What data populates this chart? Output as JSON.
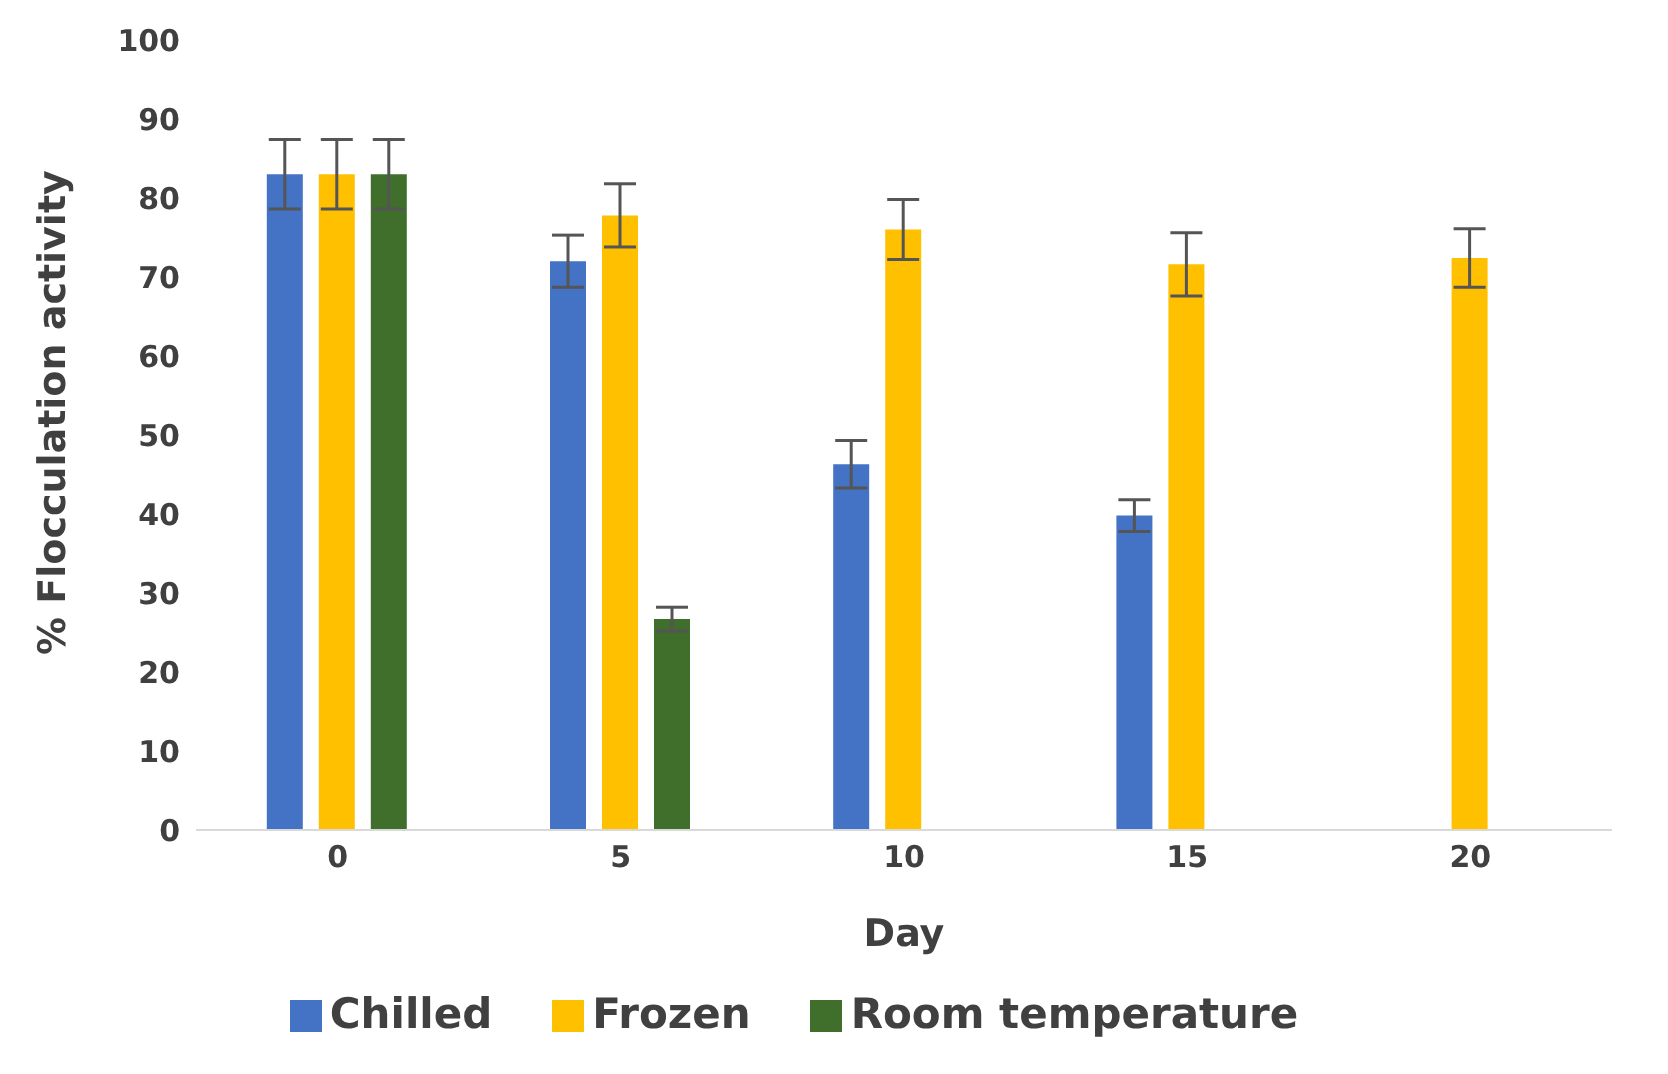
{
  "chart_data": {
    "type": "bar",
    "xlabel": "Day",
    "ylabel": "% Flocculation activity",
    "categories": [
      "0",
      "5",
      "10",
      "15",
      "20"
    ],
    "series": [
      {
        "name": "Chilled",
        "color": "#4472c4",
        "values": [
          83,
          72,
          46.3,
          39.8,
          null
        ],
        "errors": [
          4.4,
          3.3,
          3,
          2,
          null
        ]
      },
      {
        "name": "Frozen",
        "color": "#ffc000",
        "values": [
          83,
          77.8,
          76,
          71.6,
          72.4
        ],
        "errors": [
          4.4,
          4,
          3.8,
          4,
          3.7
        ]
      },
      {
        "name": "Room temperature",
        "color": "#3f6f2a",
        "values": [
          83,
          26.7,
          null,
          null,
          null
        ],
        "errors": [
          4.4,
          1.5,
          null,
          null,
          null
        ]
      }
    ],
    "ylim": [
      0,
      100
    ],
    "yticks": [
      0,
      10,
      20,
      30,
      40,
      50,
      60,
      70,
      80,
      90,
      100
    ],
    "grid": false,
    "legend": "bottom"
  }
}
